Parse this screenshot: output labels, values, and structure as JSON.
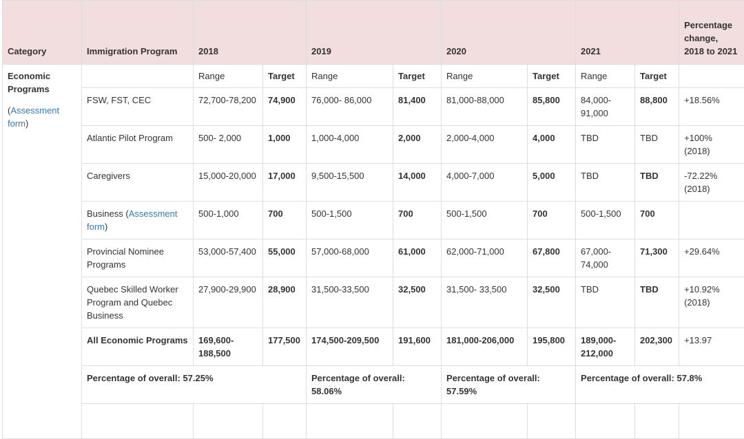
{
  "headers": {
    "category": "Category",
    "program": "Immigration Program",
    "y2018": "2018",
    "y2019": "2019",
    "y2020": "2020",
    "y2021": "2021",
    "pct": "Percentage change, 2018 to 2021"
  },
  "category": {
    "name": "Economic Programs",
    "open_paren": "(",
    "link": "Assessment form",
    "close_paren": ")"
  },
  "subheader": {
    "range": "Range",
    "target": "Target"
  },
  "rows": [
    {
      "program": "FSW, FST, CEC",
      "r18": "72,700-78,200",
      "t18": "74,900",
      "r19": "76,000- 86,000",
      "t19": "81,400",
      "r20": "81,000-88,000",
      "t20": "85,800",
      "r21": "84,000-91,000",
      "t21": "88,800",
      "pct": "+18.56%"
    },
    {
      "program": "Atlantic Pilot Program",
      "r18": "500- 2,000",
      "t18": "1,000",
      "r19": "1,000-4,000",
      "t19": "2,000",
      "r20": "2,000-4,000",
      "t20": "4,000",
      "r21": "TBD",
      "t21": "TBD",
      "pct": "+100% (2018)"
    },
    {
      "program": "Caregivers",
      "r18": "15,000-20,000",
      "t18": "17,000",
      "r19": "9,500-15,500",
      "t19": "14,000",
      "r20": "4,000-7,000",
      "t20": "5,000",
      "r21": "TBD",
      "t21": "TBD",
      "pct": "-72.22% (2018)"
    },
    {
      "program": "Business",
      "program_link": "Assessment form",
      "r18": "500-1,000",
      "t18": "700",
      "r19": "500-1,500",
      "t19": "700",
      "r20": "500-1,500",
      "t20": "700",
      "r21": "500-1,500",
      "t21": "700",
      "pct": ""
    },
    {
      "program": "Provincial Nominee Programs",
      "r18": "53,000-57,400",
      "t18": "55,000",
      "r19": "57,000-68,000",
      "t19": "61,000",
      "r20": "62,000-71,000",
      "t20": "67,800",
      "r21": "67,000-74,000",
      "t21": "71,300",
      "pct": "+29.64%"
    },
    {
      "program": "Quebec Skilled Worker Program and Quebec Business",
      "r18": "27,900-29,900",
      "t18": "28,900",
      "r19": "31,500-33,500",
      "t19": "32,500",
      "r20": "31,500- 33,500",
      "t20": "32,500",
      "r21": "TBD",
      "t21": "TBD",
      "pct": "+10.92% (2018)"
    },
    {
      "program": "All Economic Programs",
      "r18": "169,600-188,500",
      "t18": "177,500",
      "r19": "174,500-209,500",
      "t19": "191,600",
      "r20": "181,000-206,000",
      "t20": "195,800",
      "r21": "189,000-212,000",
      "t21": "202,300",
      "pct": "+13.97"
    }
  ],
  "overall": {
    "p2018": "Percentage of overall: 57.25%",
    "p2019": "Percentage of overall: 58.06%",
    "p2020": "Percentage of overall: 57.59%",
    "p2021": "Percentage of overall: 57.8%"
  }
}
